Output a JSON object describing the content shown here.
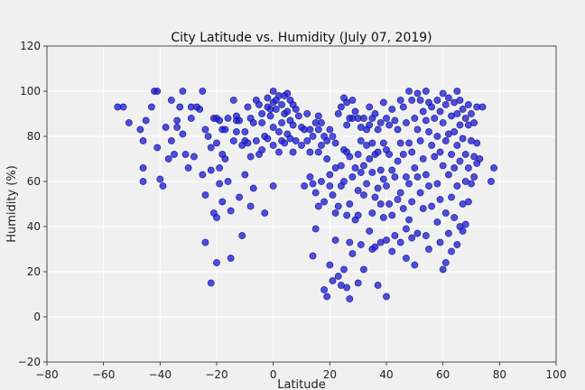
{
  "chart_data": {
    "type": "scatter",
    "title": "City Latitude vs. Humidity (July 07, 2019)",
    "xlabel": "Latitude",
    "ylabel": "Humidity (%)",
    "xlim": [
      -80,
      100
    ],
    "ylim": [
      -20,
      120
    ],
    "xticks": [
      -80,
      -60,
      -40,
      -20,
      0,
      20,
      40,
      60,
      80,
      100
    ],
    "yticks": [
      -20,
      0,
      20,
      40,
      60,
      80,
      100,
      120
    ],
    "grid": true,
    "marker_color": "#1f1fd6",
    "points": [
      [
        -55,
        93
      ],
      [
        -53,
        93
      ],
      [
        -51,
        86
      ],
      [
        -47,
        83
      ],
      [
        -46,
        78
      ],
      [
        -46,
        66
      ],
      [
        -46,
        60
      ],
      [
        -45,
        87
      ],
      [
        -43,
        93
      ],
      [
        -42,
        100
      ],
      [
        -41,
        100
      ],
      [
        -41,
        75
      ],
      [
        -40,
        61
      ],
      [
        -39,
        58
      ],
      [
        -38,
        84
      ],
      [
        -37,
        70
      ],
      [
        -36,
        96
      ],
      [
        -36,
        78
      ],
      [
        -35,
        72
      ],
      [
        -34,
        87
      ],
      [
        -34,
        84
      ],
      [
        -33,
        93
      ],
      [
        -32,
        100
      ],
      [
        -32,
        81
      ],
      [
        -31,
        72
      ],
      [
        -30,
        66
      ],
      [
        -29,
        93
      ],
      [
        -29,
        88
      ],
      [
        -28,
        71
      ],
      [
        -27,
        93
      ],
      [
        -26,
        92
      ],
      [
        -25,
        63
      ],
      [
        -25,
        100
      ],
      [
        -24,
        83
      ],
      [
        -24,
        54
      ],
      [
        -24,
        33
      ],
      [
        -23,
        80
      ],
      [
        -22,
        75
      ],
      [
        -22,
        65
      ],
      [
        -22,
        15
      ],
      [
        -21,
        88
      ],
      [
        -21,
        46
      ],
      [
        -20,
        88
      ],
      [
        -20,
        77
      ],
      [
        -20,
        44
      ],
      [
        -20,
        24
      ],
      [
        -19,
        87
      ],
      [
        -19,
        66
      ],
      [
        -19,
        59
      ],
      [
        -18,
        83
      ],
      [
        -18,
        72
      ],
      [
        -18,
        51
      ],
      [
        -17,
        83
      ],
      [
        -17,
        70
      ],
      [
        -16,
        88
      ],
      [
        -16,
        60
      ],
      [
        -15,
        26
      ],
      [
        -15,
        47
      ],
      [
        -14,
        96
      ],
      [
        -14,
        78
      ],
      [
        -13,
        89
      ],
      [
        -13,
        87
      ],
      [
        -13,
        82
      ],
      [
        -12,
        87
      ],
      [
        -12,
        53
      ],
      [
        -11,
        76
      ],
      [
        -11,
        36
      ],
      [
        -10,
        82
      ],
      [
        -10,
        78
      ],
      [
        -10,
        63
      ],
      [
        -9,
        93
      ],
      [
        -9,
        77
      ],
      [
        -8,
        88
      ],
      [
        -8,
        71
      ],
      [
        -8,
        49
      ],
      [
        -7,
        86
      ],
      [
        -7,
        57
      ],
      [
        -6,
        96
      ],
      [
        -6,
        78
      ],
      [
        -5,
        94
      ],
      [
        -5,
        72
      ],
      [
        -4,
        90
      ],
      [
        -4,
        86
      ],
      [
        -4,
        74
      ],
      [
        -3,
        80
      ],
      [
        -3,
        46
      ],
      [
        -2,
        97
      ],
      [
        -2,
        93
      ],
      [
        -2,
        79
      ],
      [
        -1,
        92
      ],
      [
        -1,
        89
      ],
      [
        0,
        100
      ],
      [
        0,
        95
      ],
      [
        0,
        84
      ],
      [
        0,
        76
      ],
      [
        0,
        58
      ],
      [
        1,
        96
      ],
      [
        1,
        92
      ],
      [
        2,
        98
      ],
      [
        2,
        82
      ],
      [
        2,
        73
      ],
      [
        3,
        94
      ],
      [
        3,
        86
      ],
      [
        3,
        78
      ],
      [
        4,
        98
      ],
      [
        4,
        90
      ],
      [
        4,
        77
      ],
      [
        5,
        99
      ],
      [
        5,
        91
      ],
      [
        5,
        81
      ],
      [
        6,
        96
      ],
      [
        6,
        87
      ],
      [
        6,
        79
      ],
      [
        7,
        94
      ],
      [
        7,
        85
      ],
      [
        7,
        73
      ],
      [
        8,
        92
      ],
      [
        8,
        78
      ],
      [
        9,
        89
      ],
      [
        10,
        84
      ],
      [
        10,
        76
      ],
      [
        11,
        83
      ],
      [
        11,
        58
      ],
      [
        12,
        90
      ],
      [
        12,
        78
      ],
      [
        13,
        83
      ],
      [
        13,
        73
      ],
      [
        13,
        62
      ],
      [
        14,
        80
      ],
      [
        14,
        59
      ],
      [
        14,
        27
      ],
      [
        15,
        86
      ],
      [
        15,
        55
      ],
      [
        15,
        39
      ],
      [
        16,
        89
      ],
      [
        16,
        83
      ],
      [
        16,
        73
      ],
      [
        16,
        49
      ],
      [
        17,
        86
      ],
      [
        17,
        76
      ],
      [
        17,
        60
      ],
      [
        18,
        80
      ],
      [
        18,
        51
      ],
      [
        18,
        12
      ],
      [
        19,
        78
      ],
      [
        19,
        70
      ],
      [
        19,
        9
      ],
      [
        20,
        83
      ],
      [
        20,
        63
      ],
      [
        20,
        58
      ],
      [
        20,
        23
      ],
      [
        21,
        80
      ],
      [
        21,
        54
      ],
      [
        21,
        16
      ],
      [
        22,
        77
      ],
      [
        22,
        66
      ],
      [
        22,
        46
      ],
      [
        22,
        34
      ],
      [
        23,
        90
      ],
      [
        23,
        49
      ],
      [
        23,
        18
      ],
      [
        24,
        93
      ],
      [
        24,
        67
      ],
      [
        24,
        58
      ],
      [
        24,
        14
      ],
      [
        25,
        97
      ],
      [
        25,
        74
      ],
      [
        25,
        60
      ],
      [
        25,
        21
      ],
      [
        26,
        95
      ],
      [
        26,
        85
      ],
      [
        26,
        73
      ],
      [
        26,
        45
      ],
      [
        26,
        13
      ],
      [
        27,
        88
      ],
      [
        27,
        71
      ],
      [
        27,
        50
      ],
      [
        27,
        33
      ],
      [
        27,
        8
      ],
      [
        28,
        96
      ],
      [
        28,
        88
      ],
      [
        28,
        62
      ],
      [
        28,
        28
      ],
      [
        29,
        91
      ],
      [
        29,
        66
      ],
      [
        29,
        43
      ],
      [
        30,
        88
      ],
      [
        30,
        72
      ],
      [
        30,
        56
      ],
      [
        30,
        45
      ],
      [
        30,
        15
      ],
      [
        31,
        84
      ],
      [
        31,
        78
      ],
      [
        31,
        64
      ],
      [
        31,
        32
      ],
      [
        32,
        88
      ],
      [
        32,
        67
      ],
      [
        32,
        54
      ],
      [
        32,
        21
      ],
      [
        33,
        83
      ],
      [
        33,
        76
      ],
      [
        33,
        59
      ],
      [
        34,
        93
      ],
      [
        34,
        85
      ],
      [
        34,
        70
      ],
      [
        34,
        38
      ],
      [
        35,
        88
      ],
      [
        35,
        77
      ],
      [
        35,
        64
      ],
      [
        35,
        46
      ],
      [
        35,
        30
      ],
      [
        36,
        90
      ],
      [
        36,
        72
      ],
      [
        36,
        53
      ],
      [
        36,
        31
      ],
      [
        37,
        83
      ],
      [
        37,
        73
      ],
      [
        37,
        57
      ],
      [
        37,
        14
      ],
      [
        38,
        86
      ],
      [
        38,
        65
      ],
      [
        38,
        50
      ],
      [
        38,
        33
      ],
      [
        39,
        95
      ],
      [
        39,
        77
      ],
      [
        39,
        61
      ],
      [
        39,
        44
      ],
      [
        40,
        88
      ],
      [
        40,
        74
      ],
      [
        40,
        58
      ],
      [
        40,
        34
      ],
      [
        40,
        9
      ],
      [
        41,
        85
      ],
      [
        41,
        72
      ],
      [
        41,
        50
      ],
      [
        42,
        92
      ],
      [
        42,
        65
      ],
      [
        42,
        45
      ],
      [
        42,
        29
      ],
      [
        43,
        87
      ],
      [
        43,
        62
      ],
      [
        43,
        36
      ],
      [
        44,
        83
      ],
      [
        44,
        69
      ],
      [
        44,
        52
      ],
      [
        45,
        96
      ],
      [
        45,
        77
      ],
      [
        45,
        55
      ],
      [
        45,
        33
      ],
      [
        46,
        93
      ],
      [
        46,
        72
      ],
      [
        46,
        48
      ],
      [
        47,
        86
      ],
      [
        47,
        62
      ],
      [
        47,
        39
      ],
      [
        47,
        26
      ],
      [
        48,
        100
      ],
      [
        48,
        77
      ],
      [
        48,
        59
      ],
      [
        48,
        43
      ],
      [
        49,
        96
      ],
      [
        49,
        73
      ],
      [
        49,
        51
      ],
      [
        49,
        35
      ],
      [
        50,
        88
      ],
      [
        50,
        66
      ],
      [
        50,
        23
      ],
      [
        51,
        99
      ],
      [
        51,
        83
      ],
      [
        51,
        62
      ],
      [
        51,
        37
      ],
      [
        52,
        96
      ],
      [
        52,
        78
      ],
      [
        52,
        55
      ],
      [
        53,
        91
      ],
      [
        53,
        70
      ],
      [
        53,
        48
      ],
      [
        54,
        100
      ],
      [
        54,
        87
      ],
      [
        54,
        63
      ],
      [
        54,
        36
      ],
      [
        55,
        95
      ],
      [
        55,
        82
      ],
      [
        55,
        58
      ],
      [
        55,
        30
      ],
      [
        56,
        93
      ],
      [
        56,
        76
      ],
      [
        56,
        49
      ],
      [
        57,
        88
      ],
      [
        57,
        71
      ],
      [
        58,
        96
      ],
      [
        58,
        80
      ],
      [
        58,
        59
      ],
      [
        58,
        42
      ],
      [
        59,
        91
      ],
      [
        59,
        73
      ],
      [
        59,
        52
      ],
      [
        59,
        33
      ],
      [
        60,
        99
      ],
      [
        60,
        86
      ],
      [
        60,
        67
      ],
      [
        60,
        21
      ],
      [
        61,
        94
      ],
      [
        61,
        78
      ],
      [
        61,
        46
      ],
      [
        61,
        24
      ],
      [
        62,
        97
      ],
      [
        62,
        81
      ],
      [
        62,
        63
      ],
      [
        62,
        37
      ],
      [
        63,
        89
      ],
      [
        63,
        72
      ],
      [
        63,
        53
      ],
      [
        63,
        29
      ],
      [
        64,
        95
      ],
      [
        64,
        82
      ],
      [
        64,
        66
      ],
      [
        64,
        44
      ],
      [
        65,
        100
      ],
      [
        65,
        90
      ],
      [
        65,
        76
      ],
      [
        65,
        58
      ],
      [
        65,
        32
      ],
      [
        66,
        96
      ],
      [
        66,
        85
      ],
      [
        66,
        69
      ],
      [
        66,
        40
      ],
      [
        67,
        92
      ],
      [
        67,
        79
      ],
      [
        67,
        50
      ],
      [
        67,
        38
      ],
      [
        68,
        88
      ],
      [
        68,
        72
      ],
      [
        68,
        60
      ],
      [
        68,
        41
      ],
      [
        69,
        94
      ],
      [
        69,
        85
      ],
      [
        69,
        66
      ],
      [
        69,
        51
      ],
      [
        70,
        90
      ],
      [
        70,
        78
      ],
      [
        70,
        59
      ],
      [
        71,
        86
      ],
      [
        71,
        71
      ],
      [
        71,
        62
      ],
      [
        72,
        93
      ],
      [
        72,
        77
      ],
      [
        72,
        68
      ],
      [
        73,
        70
      ],
      [
        74,
        93
      ],
      [
        77,
        60
      ],
      [
        78,
        66
      ]
    ]
  }
}
